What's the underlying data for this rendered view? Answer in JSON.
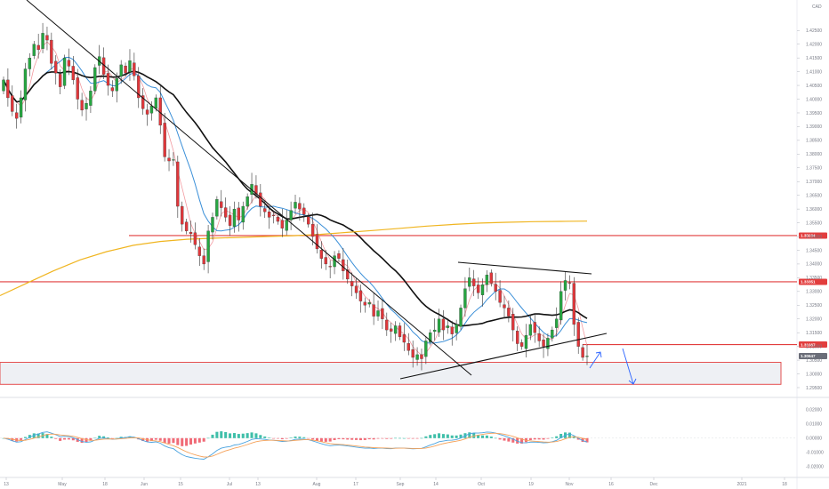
{
  "header": {
    "symbol": "CAD"
  },
  "colors": {
    "up": "#26a641",
    "down": "#e0363a",
    "black_ma": "#111111",
    "blue_ma": "#3a8fd8",
    "red_ma": "#f29aa0",
    "gold_ma": "#f0b520",
    "level": "#e23d3d",
    "arrow": "#2962ff",
    "macd_line": "#4aa3df",
    "signal_line": "#f5a25a",
    "hist_pos": "#3fbfa9",
    "hist_neg": "#f06b77"
  },
  "chart_data": [
    {
      "type": "candlestick",
      "name": "price",
      "ylim": [
        1.2937,
        1.4335
      ],
      "y_ticks": [
        "1.42500",
        "1.42000",
        "1.41500",
        "1.41000",
        "1.40500",
        "1.40000",
        "1.39500",
        "1.39000",
        "1.38500",
        "1.38000",
        "1.37500",
        "1.37000",
        "1.36500",
        "1.36000",
        "1.35500",
        "1.35000",
        "1.34500",
        "1.34000",
        "1.33500",
        "1.33000",
        "1.32500",
        "1.32000",
        "1.31500",
        "1.31000",
        "1.30500",
        "1.30000",
        "1.29500"
      ],
      "x_ticks": [
        "13",
        "May",
        "18",
        "Jun",
        "15",
        "Jul",
        "13",
        "Aug",
        "17",
        "Sep",
        "14",
        "Oct",
        "19",
        "Nov",
        "16",
        "Dec",
        "2021",
        "18"
      ],
      "levels": [
        {
          "label": "1.35034",
          "value": 1.35034
        },
        {
          "label": "1.33351",
          "value": 1.33351
        },
        {
          "label": "1.31067",
          "value": 1.31067
        }
      ],
      "current_price": "1.30647",
      "support_zone": [
        1.2962,
        1.3042
      ],
      "closes": [
        1.407,
        1.4005,
        1.3955,
        1.393,
        1.4005,
        1.411,
        1.415,
        1.42,
        1.418,
        1.424,
        1.4215,
        1.413,
        1.4095,
        1.4045,
        1.415,
        1.412,
        1.407,
        1.4,
        1.396,
        1.3985,
        1.403,
        1.4115,
        1.4155,
        1.409,
        1.405,
        1.403,
        1.4075,
        1.4125,
        1.4095,
        1.414,
        1.4085,
        1.4005,
        1.3965,
        1.3945,
        1.3975,
        1.4005,
        1.3905,
        1.379,
        1.3775,
        1.378,
        1.361,
        1.3545,
        1.352,
        1.351,
        1.347,
        1.343,
        1.34,
        1.352,
        1.357,
        1.3635,
        1.3605,
        1.357,
        1.354,
        1.36,
        1.356,
        1.361,
        1.3645,
        1.369,
        1.3655,
        1.361,
        1.359,
        1.357,
        1.3575,
        1.3555,
        1.353,
        1.356,
        1.3595,
        1.3625,
        1.36,
        1.358,
        1.3545,
        1.35,
        1.3455,
        1.342,
        1.34,
        1.339,
        1.343,
        1.342,
        1.3375,
        1.3345,
        1.332,
        1.3295,
        1.3265,
        1.325,
        1.326,
        1.321,
        1.323,
        1.32,
        1.316,
        1.3155,
        1.3175,
        1.3135,
        1.3115,
        1.3085,
        1.306,
        1.307,
        1.3055,
        1.312,
        1.315,
        1.316,
        1.32,
        1.316,
        1.3175,
        1.3145,
        1.318,
        1.324,
        1.331,
        1.335,
        1.332,
        1.3295,
        1.3325,
        1.336,
        1.333,
        1.33,
        1.326,
        1.324,
        1.321,
        1.316,
        1.311,
        1.31,
        1.314,
        1.318,
        1.315,
        1.312,
        1.31,
        1.313,
        1.316,
        1.32,
        1.33,
        1.334,
        1.333,
        1.318,
        1.31,
        1.306,
        1.3065
      ]
    },
    {
      "type": "macd",
      "name": "oscillator",
      "ylim": [
        -0.0245,
        0.0255
      ],
      "y_ticks": [
        "0.02000",
        "0.01000",
        "0.00000",
        "-0.01000",
        "-0.02000"
      ]
    }
  ]
}
